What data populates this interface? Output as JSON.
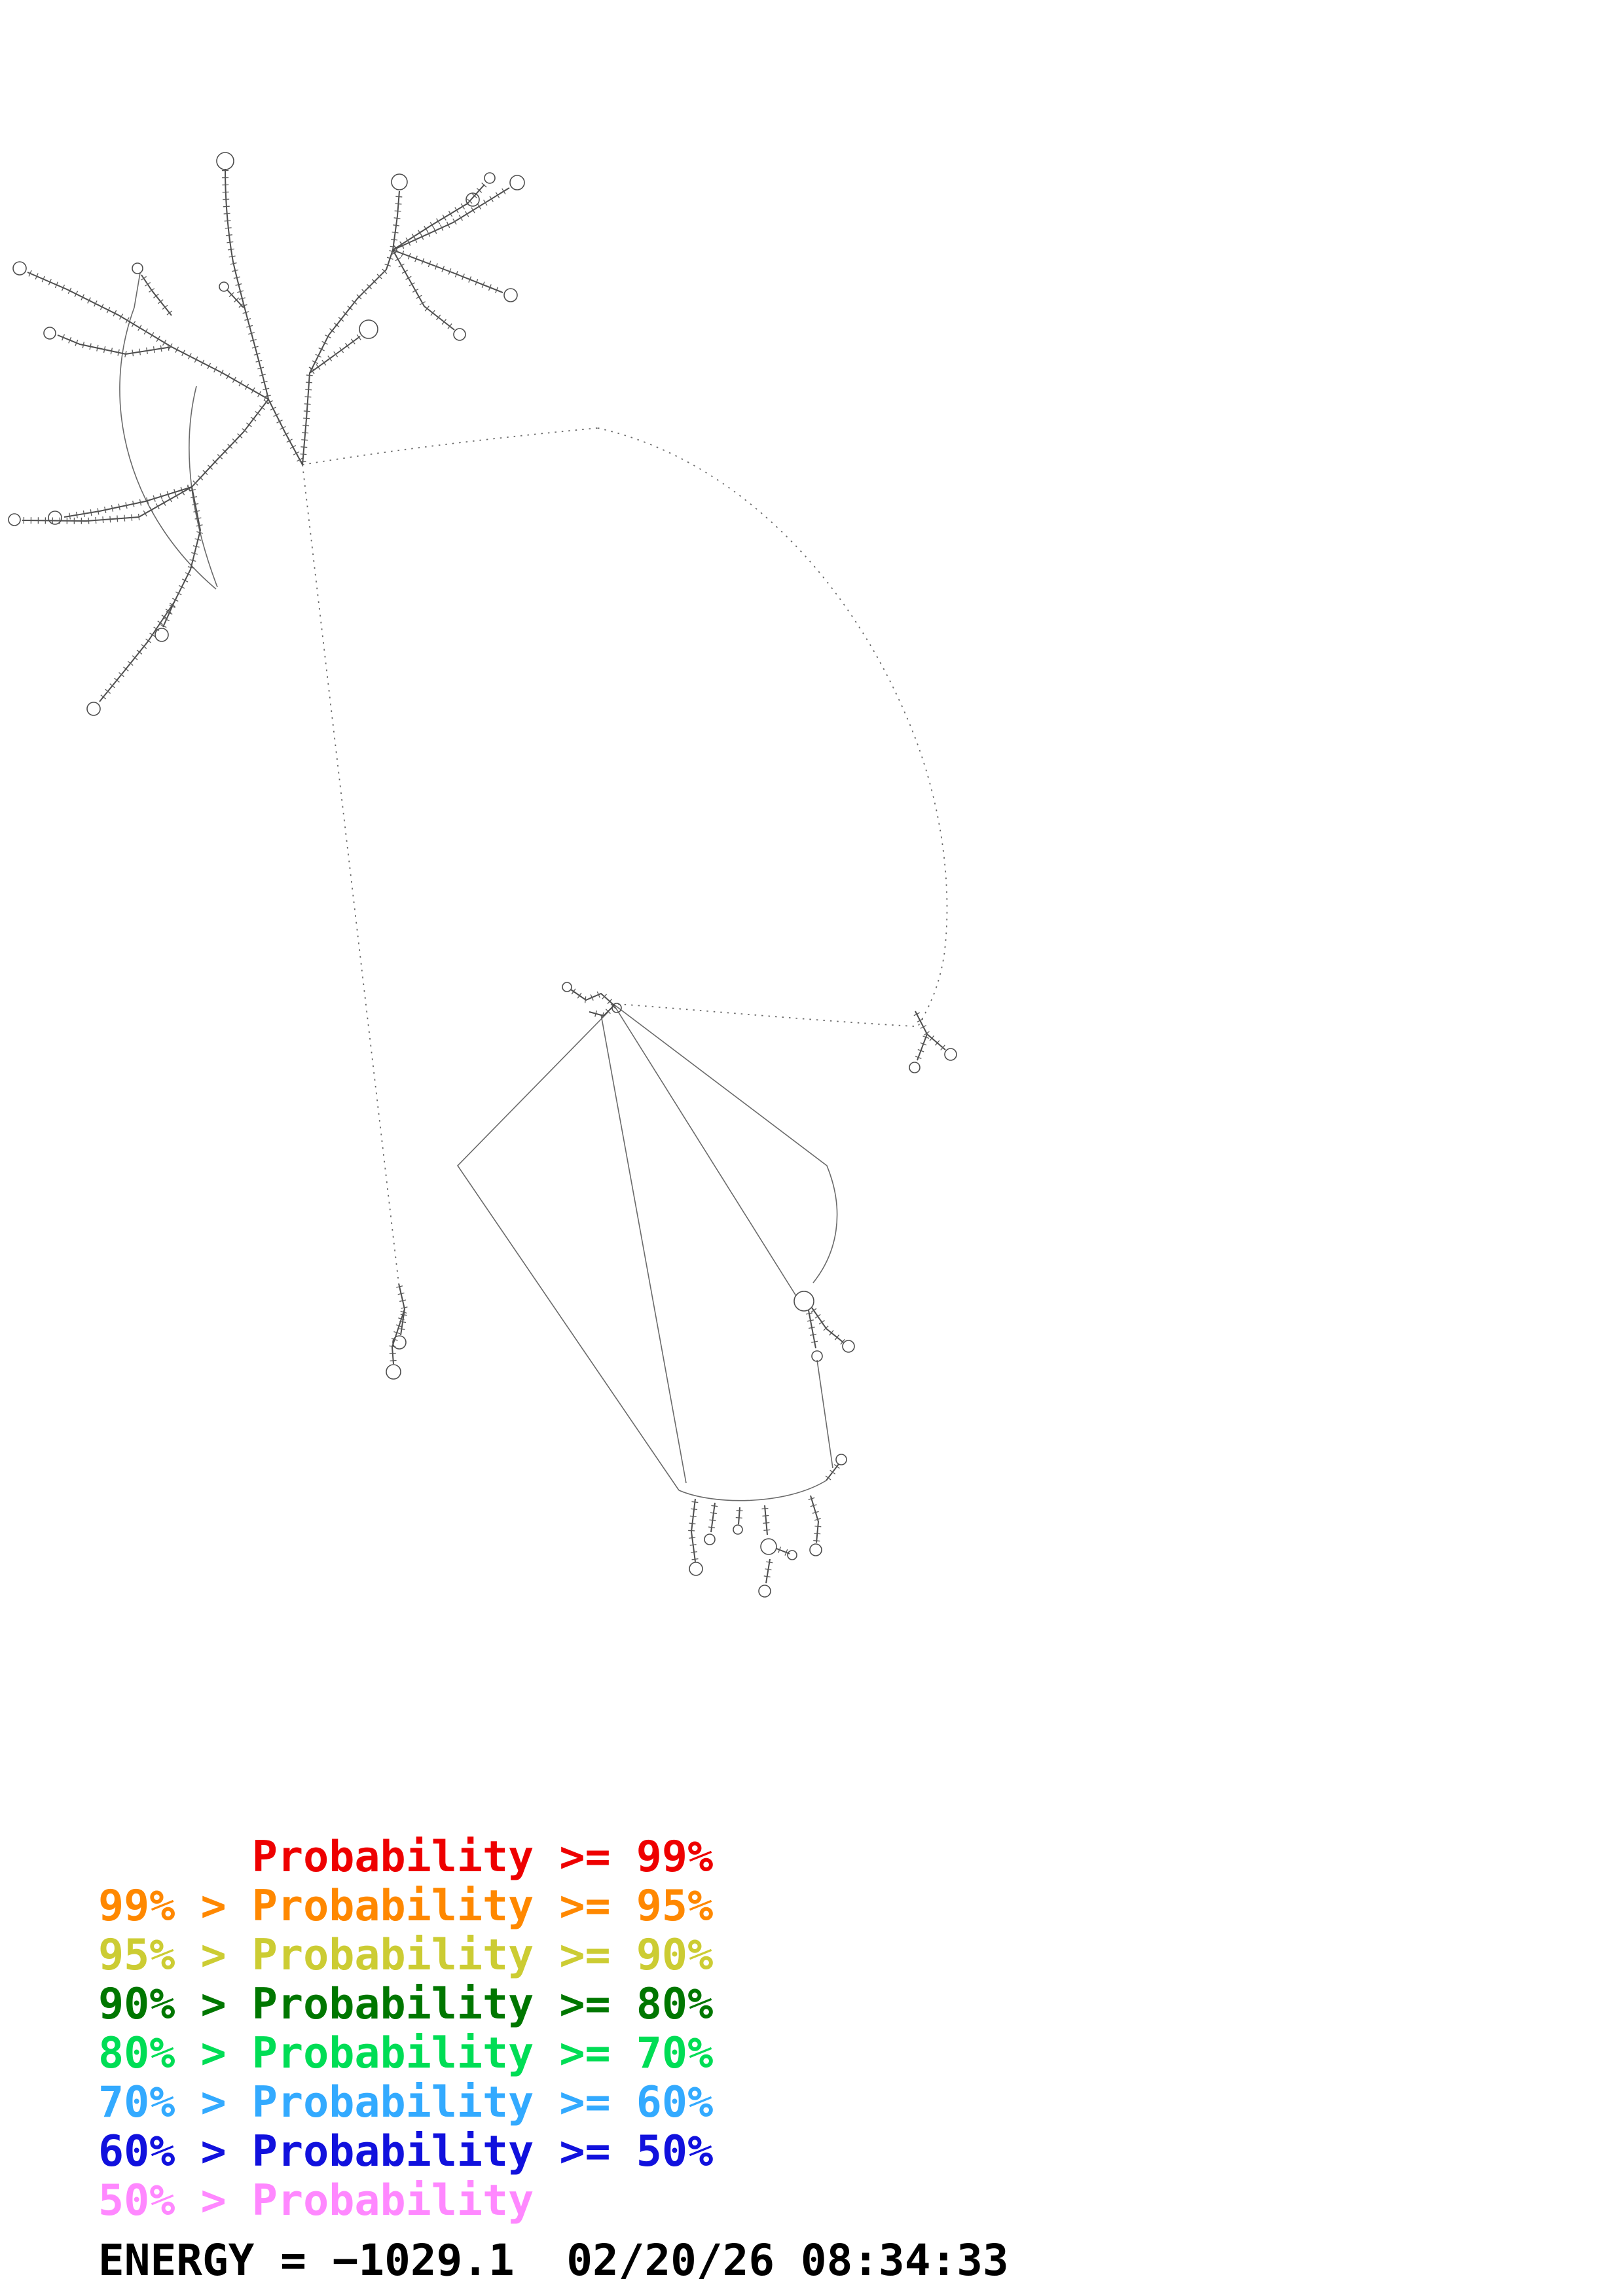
{
  "diagram": {
    "name": "rna-secondary-structure-probability-plot",
    "line_color": "#4d4d4d"
  },
  "legend": {
    "items": [
      {
        "text": "      Probability >= 99%",
        "color": "#ee0000"
      },
      {
        "text": "99% > Probability >= 95%",
        "color": "#ff8800"
      },
      {
        "text": "95% > Probability >= 90%",
        "color": "#cccc33"
      },
      {
        "text": "90% > Probability >= 80%",
        "color": "#007700"
      },
      {
        "text": "80% > Probability >= 70%",
        "color": "#00dd55"
      },
      {
        "text": "70% > Probability >= 60%",
        "color": "#33aaff"
      },
      {
        "text": "60% > Probability >= 50%",
        "color": "#1111dd"
      },
      {
        "text": "50% > Probability",
        "color": "#ff88ff"
      }
    ]
  },
  "footer": {
    "energy_text": "ENERGY = −1029.1  02/20/26 08:34:33"
  }
}
